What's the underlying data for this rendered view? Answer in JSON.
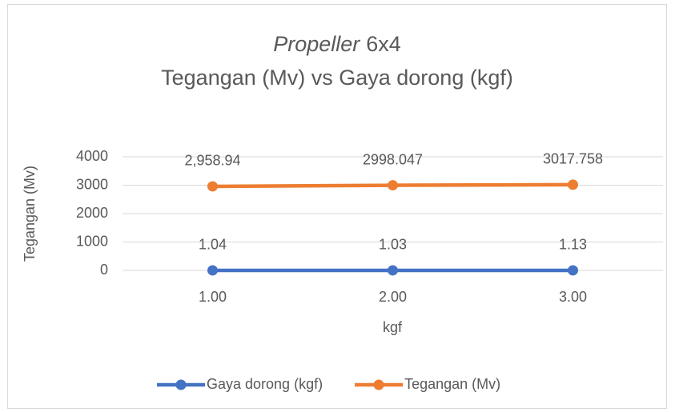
{
  "chart_data": {
    "type": "line",
    "title": [
      [
        {
          "text": "Propeller",
          "italic": true
        },
        {
          "text": "6x4",
          "italic": false
        }
      ],
      [
        {
          "text": "Tegangan (Mv) vs Gaya dorong (kgf)",
          "italic": false
        }
      ]
    ],
    "x_label": "kgf",
    "y_label": "Tegangan (Mv)",
    "categories": [
      "1.00",
      "2.00",
      "3.00"
    ],
    "series": [
      {
        "name": "Gaya dorong (kgf)",
        "color": "#4472c4",
        "values": [
          1.04,
          1.03,
          1.13
        ]
      },
      {
        "name": "Tegangan (Mv)",
        "color": "#ed7d31",
        "values": [
          2958.94,
          2998.047,
          3017.758
        ],
        "value_labels": [
          "2,958.94",
          "2998.047",
          "3017.758"
        ]
      }
    ],
    "ylim": [
      0,
      4000
    ],
    "yticks": [
      0,
      1000,
      2000,
      3000,
      4000
    ],
    "grid": true,
    "legend": "bottom"
  }
}
